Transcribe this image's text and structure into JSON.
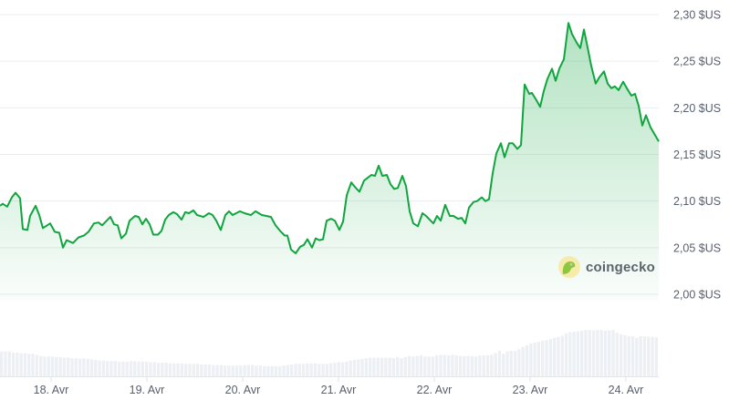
{
  "chart_data": {
    "type": "area",
    "title": "",
    "xlabel": "",
    "ylabel": "",
    "x_ticks": [
      "04-18 00:00",
      "04-19 00:00",
      "04-20 00:00",
      "04-21 00:00",
      "04-22 00:00",
      "04-23 00:00",
      "04-24 00:00"
    ],
    "x_tick_labels": [
      "18. Avr",
      "19. Avr",
      "20. Avr",
      "21. Avr",
      "22. Avr",
      "23. Avr",
      "24. Avr"
    ],
    "y_ticks": [
      2.0,
      2.05,
      2.1,
      2.15,
      2.2,
      2.25,
      2.3
    ],
    "y_tick_labels": [
      "2,00 $US",
      "2,05 $US",
      "2,10 $US",
      "2,15 $US",
      "2,20 $US",
      "2,25 $US",
      "2,30 $US"
    ],
    "ylim": [
      2.0,
      2.3
    ],
    "xlim": [
      "04-17 11:12",
      "04-24 08:14"
    ],
    "grid": true,
    "legend": "none",
    "line_color": "#10a53e",
    "fill_color": "#10a53e",
    "grid_color": "#e9edf1",
    "volume_color": "#eceff3",
    "series": [
      {
        "points": [
          [
            "04-17 11:12",
            2.095
          ],
          [
            "04-17 11:53",
            2.097
          ],
          [
            "04-17 13:00",
            2.094
          ],
          [
            "04-17 14:10",
            2.104
          ],
          [
            "04-17 15:05",
            2.109
          ],
          [
            "04-17 16:14",
            2.103
          ],
          [
            "04-17 16:55",
            2.07
          ],
          [
            "04-17 18:03",
            2.069
          ],
          [
            "04-17 18:45",
            2.084
          ],
          [
            "04-17 20:07",
            2.095
          ],
          [
            "04-17 21:02",
            2.085
          ],
          [
            "04-17 21:57",
            2.071
          ],
          [
            "04-17 23:46",
            2.076
          ],
          [
            "04-18 00:55",
            2.067
          ],
          [
            "04-18 02:03",
            2.066
          ],
          [
            "04-18 02:58",
            2.05
          ],
          [
            "04-18 03:53",
            2.058
          ],
          [
            "04-18 05:29",
            2.055
          ],
          [
            "04-18 06:51",
            2.061
          ],
          [
            "04-18 08:14",
            2.063
          ],
          [
            "04-18 09:22",
            2.067
          ],
          [
            "04-18 10:44",
            2.076
          ],
          [
            "04-18 11:53",
            2.077
          ],
          [
            "04-18 12:48",
            2.074
          ],
          [
            "04-18 14:10",
            2.08
          ],
          [
            "04-18 14:51",
            2.083
          ],
          [
            "04-18 15:46",
            2.075
          ],
          [
            "04-18 16:41",
            2.074
          ],
          [
            "04-18 17:36",
            2.06
          ],
          [
            "04-18 18:45",
            2.065
          ],
          [
            "04-18 19:39",
            2.079
          ],
          [
            "04-18 21:02",
            2.084
          ],
          [
            "04-18 21:57",
            2.083
          ],
          [
            "04-18 22:51",
            2.075
          ],
          [
            "04-18 23:46",
            2.081
          ],
          [
            "04-19 00:41",
            2.075
          ],
          [
            "04-19 01:36",
            2.064
          ],
          [
            "04-19 02:44",
            2.064
          ],
          [
            "04-19 03:39",
            2.068
          ],
          [
            "04-19 04:34",
            2.08
          ],
          [
            "04-19 05:29",
            2.085
          ],
          [
            "04-19 06:38",
            2.088
          ],
          [
            "04-19 07:33",
            2.086
          ],
          [
            "04-19 08:41",
            2.08
          ],
          [
            "04-19 09:36",
            2.088
          ],
          [
            "04-19 10:31",
            2.087
          ],
          [
            "04-19 11:40",
            2.09
          ],
          [
            "04-19 12:34",
            2.085
          ],
          [
            "04-19 14:10",
            2.083
          ],
          [
            "04-19 15:33",
            2.087
          ],
          [
            "04-19 16:27",
            2.085
          ],
          [
            "04-19 17:22",
            2.079
          ],
          [
            "04-19 18:31",
            2.069
          ],
          [
            "04-19 19:39",
            2.085
          ],
          [
            "04-19 20:34",
            2.089
          ],
          [
            "04-19 21:29",
            2.085
          ],
          [
            "04-19 23:19",
            2.089
          ],
          [
            "04-20 00:27",
            2.087
          ],
          [
            "04-20 02:03",
            2.085
          ],
          [
            "04-20 03:12",
            2.089
          ],
          [
            "04-20 04:48",
            2.085
          ],
          [
            "04-20 05:57",
            2.084
          ],
          [
            "04-20 07:05",
            2.083
          ],
          [
            "04-20 08:14",
            2.074
          ],
          [
            "04-20 09:22",
            2.068
          ],
          [
            "04-20 10:31",
            2.063
          ],
          [
            "04-20 11:12",
            2.063
          ],
          [
            "04-20 12:07",
            2.048
          ],
          [
            "04-20 13:15",
            2.044
          ],
          [
            "04-20 14:24",
            2.051
          ],
          [
            "04-20 15:19",
            2.053
          ],
          [
            "04-20 16:14",
            2.059
          ],
          [
            "04-20 17:22",
            2.05
          ],
          [
            "04-20 18:17",
            2.06
          ],
          [
            "04-20 19:12",
            2.058
          ],
          [
            "04-20 20:07",
            2.059
          ],
          [
            "04-20 21:02",
            2.079
          ],
          [
            "04-20 22:10",
            2.081
          ],
          [
            "04-20 23:05",
            2.079
          ],
          [
            "04-21 00:14",
            2.069
          ],
          [
            "04-21 01:09",
            2.078
          ],
          [
            "04-21 02:03",
            2.106
          ],
          [
            "04-21 03:12",
            2.12
          ],
          [
            "04-21 04:21",
            2.114
          ],
          [
            "04-21 05:15",
            2.11
          ],
          [
            "04-21 06:24",
            2.122
          ],
          [
            "04-21 08:14",
            2.128
          ],
          [
            "04-21 09:09",
            2.127
          ],
          [
            "04-21 10:03",
            2.138
          ],
          [
            "04-21 10:58",
            2.127
          ],
          [
            "04-21 12:07",
            2.128
          ],
          [
            "04-21 13:02",
            2.118
          ],
          [
            "04-21 13:57",
            2.113
          ],
          [
            "04-21 14:51",
            2.114
          ],
          [
            "04-21 16:00",
            2.127
          ],
          [
            "04-21 16:55",
            2.116
          ],
          [
            "04-21 17:50",
            2.089
          ],
          [
            "04-21 18:45",
            2.076
          ],
          [
            "04-21 19:53",
            2.073
          ],
          [
            "04-21 21:02",
            2.087
          ],
          [
            "04-21 21:57",
            2.084
          ],
          [
            "04-21 23:05",
            2.079
          ],
          [
            "04-21 23:46",
            2.076
          ],
          [
            "04-22 00:41",
            2.084
          ],
          [
            "04-22 01:36",
            2.079
          ],
          [
            "04-22 02:44",
            2.096
          ],
          [
            "04-22 03:53",
            2.084
          ],
          [
            "04-22 04:48",
            2.084
          ],
          [
            "04-22 05:57",
            2.081
          ],
          [
            "04-22 06:51",
            2.082
          ],
          [
            "04-22 07:46",
            2.076
          ],
          [
            "04-22 08:41",
            2.093
          ],
          [
            "04-22 09:50",
            2.099
          ],
          [
            "04-22 10:44",
            2.1
          ],
          [
            "04-22 11:53",
            2.104
          ],
          [
            "04-22 12:48",
            2.1
          ],
          [
            "04-22 13:43",
            2.102
          ],
          [
            "04-22 14:38",
            2.13
          ],
          [
            "04-22 15:33",
            2.151
          ],
          [
            "04-22 16:41",
            2.162
          ],
          [
            "04-22 17:36",
            2.147
          ],
          [
            "04-22 18:45",
            2.162
          ],
          [
            "04-22 19:39",
            2.162
          ],
          [
            "04-22 20:48",
            2.156
          ],
          [
            "04-22 21:43",
            2.16
          ],
          [
            "04-22 22:38",
            2.225
          ],
          [
            "04-22 23:46",
            2.215
          ],
          [
            "04-23 00:27",
            2.216
          ],
          [
            "04-23 01:36",
            2.208
          ],
          [
            "04-23 02:31",
            2.201
          ],
          [
            "04-23 03:26",
            2.218
          ],
          [
            "04-23 04:21",
            2.231
          ],
          [
            "04-23 05:29",
            2.242
          ],
          [
            "04-23 06:24",
            2.229
          ],
          [
            "04-23 07:19",
            2.242
          ],
          [
            "04-23 08:27",
            2.252
          ],
          [
            "04-23 09:36",
            2.291
          ],
          [
            "04-23 10:31",
            2.279
          ],
          [
            "04-23 11:40",
            2.27
          ],
          [
            "04-23 12:34",
            2.264
          ],
          [
            "04-23 13:29",
            2.284
          ],
          [
            "04-23 14:38",
            2.26
          ],
          [
            "04-23 15:19",
            2.245
          ],
          [
            "04-23 16:27",
            2.226
          ],
          [
            "04-23 17:22",
            2.233
          ],
          [
            "04-23 18:31",
            2.239
          ],
          [
            "04-23 19:26",
            2.226
          ],
          [
            "04-23 20:21",
            2.221
          ],
          [
            "04-23 21:15",
            2.223
          ],
          [
            "04-23 22:10",
            2.219
          ],
          [
            "04-23 23:19",
            2.228
          ],
          [
            "04-24 00:14",
            2.221
          ],
          [
            "04-24 01:22",
            2.213
          ],
          [
            "04-24 02:17",
            2.215
          ],
          [
            "04-24 03:12",
            2.202
          ],
          [
            "04-24 04:07",
            2.181
          ],
          [
            "04-24 05:02",
            2.192
          ],
          [
            "04-24 06:10",
            2.179
          ],
          [
            "04-24 08:14",
            2.164
          ]
        ]
      }
    ],
    "volume_relative": [
      44,
      44,
      44,
      42,
      42,
      41,
      41,
      40,
      40,
      38,
      36,
      35,
      35,
      35,
      34,
      34,
      33,
      33,
      32,
      32,
      31,
      32,
      31,
      30,
      29,
      28,
      28,
      27,
      27,
      27,
      26,
      26,
      26,
      27,
      27,
      26,
      26,
      26,
      25,
      25,
      24,
      24,
      24,
      23,
      23,
      23,
      23,
      22,
      22,
      22,
      22,
      21,
      21,
      21,
      20,
      20,
      20,
      19,
      19,
      19,
      19,
      19,
      20,
      20,
      20,
      19,
      19,
      18,
      18,
      18,
      18,
      18,
      19,
      20,
      21,
      22,
      22,
      22,
      23,
      23,
      23,
      22,
      22,
      22,
      23,
      24,
      25,
      25,
      26,
      28,
      29,
      30,
      31,
      32,
      33,
      33,
      33,
      33,
      33,
      33,
      32,
      34,
      32,
      34,
      36,
      35,
      36,
      37,
      35,
      35,
      35,
      37,
      38,
      38,
      37,
      38,
      37,
      36,
      36,
      36,
      36,
      35,
      37,
      37,
      37,
      38,
      41,
      45,
      40,
      44,
      45,
      45,
      48,
      52,
      55,
      58,
      60,
      61,
      63,
      64,
      66,
      68,
      70,
      72,
      76,
      78,
      79,
      80,
      81,
      82,
      82,
      81,
      82,
      82,
      81,
      81,
      82,
      77,
      74,
      73,
      71,
      71,
      68,
      71,
      71,
      70,
      70,
      69
    ]
  },
  "watermark": {
    "text": "coingecko",
    "icon": "coingecko-gecko-logo"
  }
}
